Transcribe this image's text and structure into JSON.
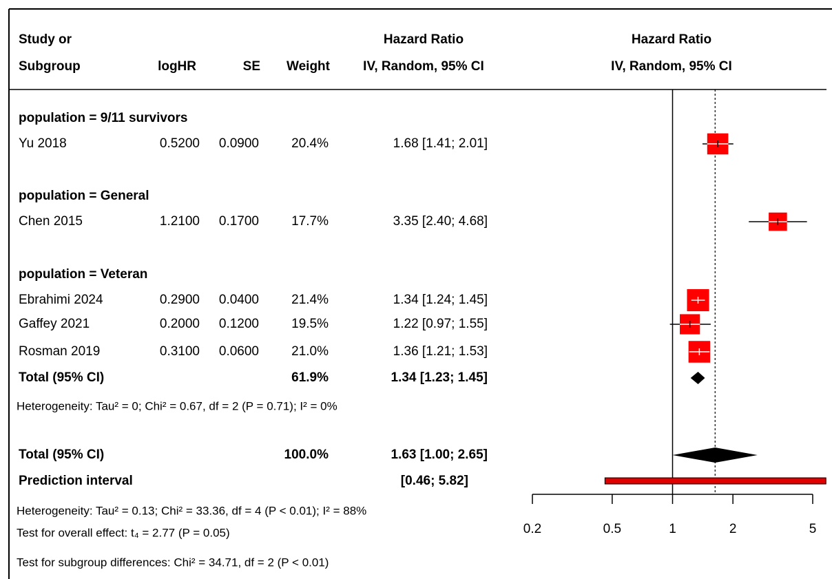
{
  "chart_data": {
    "type": "forest",
    "columns": {
      "study": [
        "Study or",
        "Subgroup"
      ],
      "logHR": "logHR",
      "se": "SE",
      "weight": "Weight",
      "effect": [
        "Hazard Ratio",
        "IV, Random, 95% CI"
      ],
      "plot": [
        "Hazard Ratio",
        "IV, Random, 95% CI"
      ]
    },
    "groups": [
      {
        "label": "population = 9/11 survivors",
        "studies": [
          {
            "name": "Yu 2018",
            "logHR": "0.5200",
            "se": "0.0900",
            "weight": 20.4,
            "weight_label": "20.4%",
            "hr": 1.68,
            "lower": 1.41,
            "upper": 2.01,
            "ci_label": "1.68 [1.41; 2.01]"
          }
        ]
      },
      {
        "label": "population = General",
        "studies": [
          {
            "name": "Chen 2015",
            "logHR": "1.2100",
            "se": "0.1700",
            "weight": 17.7,
            "weight_label": "17.7%",
            "hr": 3.35,
            "lower": 2.4,
            "upper": 4.68,
            "ci_label": "3.35 [2.40; 4.68]"
          }
        ]
      },
      {
        "label": "population = Veteran",
        "studies": [
          {
            "name": "Ebrahimi 2024",
            "logHR": "0.2900",
            "se": "0.0400",
            "weight": 21.4,
            "weight_label": "21.4%",
            "hr": 1.34,
            "lower": 1.24,
            "upper": 1.45,
            "ci_label": "1.34 [1.24; 1.45]"
          },
          {
            "name": "Gaffey 2021",
            "logHR": "0.2000",
            "se": "0.1200",
            "weight": 19.5,
            "weight_label": "19.5%",
            "hr": 1.22,
            "lower": 0.97,
            "upper": 1.55,
            "ci_label": "1.22 [0.97; 1.55]"
          },
          {
            "name": "Rosman 2019",
            "logHR": "0.3100",
            "se": "0.0600",
            "weight": 21.0,
            "weight_label": "21.0%",
            "hr": 1.36,
            "lower": 1.21,
            "upper": 1.53,
            "ci_label": "1.36 [1.21; 1.53]"
          }
        ],
        "total": {
          "label": "Total (95% CI)",
          "weight_label": "61.9%",
          "hr": 1.34,
          "lower": 1.23,
          "upper": 1.45,
          "ci_label": "1.34 [1.23; 1.45]",
          "heterogeneity": "Heterogeneity: Tau² = 0; Chi² = 0.67, df = 2 (P = 0.71); I² = 0%"
        }
      }
    ],
    "overall": {
      "label": "Total (95% CI)",
      "weight_label": "100.0%",
      "hr": 1.63,
      "lower": 1.0,
      "upper": 2.65,
      "ci_label": "1.63 [1.00; 2.65]"
    },
    "prediction": {
      "label": "Prediction interval",
      "lower": 0.46,
      "upper": 5.82,
      "ci_label": "[0.46; 5.82]"
    },
    "notes": [
      "Heterogeneity: Tau² = 0.13; Chi² = 33.36, df = 4 (P < 0.01); I² = 88%",
      "Test for overall effect: t₄ = 2.77 (P = 0.05)",
      "Test for subgroup differences: Chi² = 34.71, df = 2 (P < 0.01)"
    ],
    "log_scale": true,
    "xlim": [
      0.2,
      5
    ],
    "xticks": [
      0.2,
      0.5,
      1,
      2,
      5
    ],
    "null_value": 1,
    "square_color": "#ff0000",
    "prediction_color": "#e00000",
    "subgroup_color": "#aaaaaa"
  }
}
